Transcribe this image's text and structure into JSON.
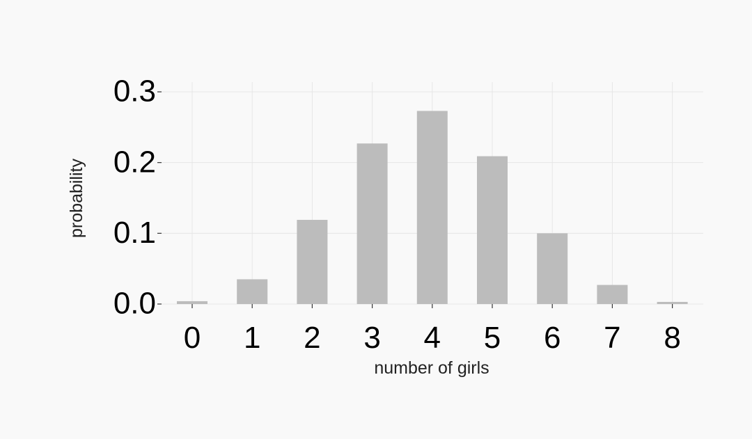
{
  "chart_data": {
    "type": "bar",
    "categories": [
      "0",
      "1",
      "2",
      "3",
      "4",
      "5",
      "6",
      "7",
      "8"
    ],
    "values": [
      0.004,
      0.035,
      0.119,
      0.227,
      0.273,
      0.209,
      0.1,
      0.027,
      0.003
    ],
    "title": "",
    "xlabel": "number of girls",
    "ylabel": "probability",
    "yticks": [
      "0.0",
      "0.1",
      "0.2",
      "0.3"
    ],
    "ylim": [
      0,
      0.3
    ],
    "grid": true,
    "legend": "none",
    "colors": {
      "bar": "#bcbcbc",
      "grid": "#e6e6e6",
      "background": "#f9f9f9"
    }
  }
}
